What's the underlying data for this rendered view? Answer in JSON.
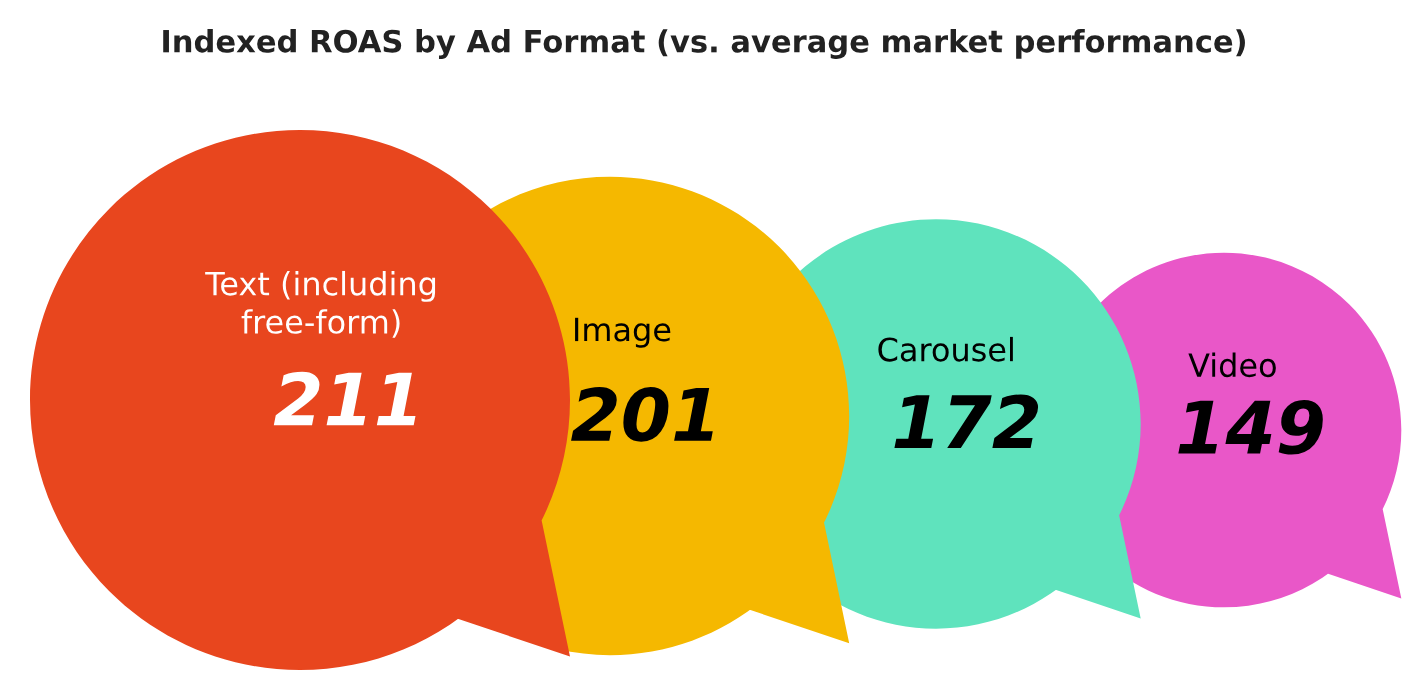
{
  "chart_data": {
    "type": "other",
    "title": "Indexed ROAS by Ad Format (vs. average market performance)",
    "categories": [
      "Text (including free-form)",
      "Image",
      "Carousel",
      "Video"
    ],
    "values": [
      211,
      201,
      172,
      149
    ],
    "colors": [
      "#e8461e",
      "#f5b800",
      "#5fe3bd",
      "#e957c8"
    ],
    "data_labels": true
  }
}
